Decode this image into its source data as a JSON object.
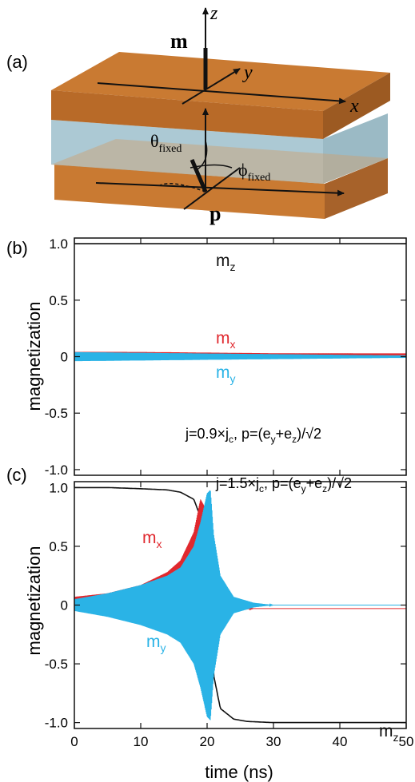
{
  "figure": {
    "panel_a": {
      "label": "(a)",
      "vec_m": "m",
      "vec_p": "p",
      "axis_x": "x",
      "axis_y": "y",
      "axis_z": "z",
      "theta": "θ",
      "theta_sub": "fixed",
      "phi": "ϕ",
      "phi_sub": "fixed",
      "colors": {
        "fm_layer": "#c97a32",
        "spacer": "#9dbfcc"
      }
    },
    "panel_b": {
      "label": "(b)"
    },
    "panel_c": {
      "label": "(c)"
    },
    "colors": {
      "mx": "#e0282e",
      "my": "#2ab3e6",
      "mz": "#111111"
    }
  },
  "chart_data": [
    {
      "type": "line",
      "panel": "(b)",
      "xlabel": "",
      "ylabel": "magnetization",
      "ylim": [
        -1.05,
        1.05
      ],
      "xlim": [
        0,
        50
      ],
      "yticks": [
        "1.0",
        "0.5",
        "0",
        "-0.5",
        "-1.0"
      ],
      "ytick_values": [
        1.0,
        0.5,
        0,
        -0.5,
        -1.0
      ],
      "annotation": {
        "main": "j=0.9×j",
        "sub1": "c",
        "mid": ", p=(e",
        "sub2": "y",
        "plus": "+e",
        "sub3": "z",
        "tail": ")/√2"
      },
      "series": [
        {
          "name": "m",
          "name_sub": "z",
          "color": "#111111",
          "x": [
            0,
            50
          ],
          "y": [
            1.0,
            1.0
          ]
        },
        {
          "name": "m",
          "name_sub": "x",
          "color": "#e0282e",
          "x": [
            0,
            10,
            20,
            30,
            40,
            50
          ],
          "y": [
            0.03,
            0.03,
            0.025,
            0.02,
            0.02,
            0.02
          ],
          "oscillation_amplitude": [
            0.012,
            0.008
          ]
        },
        {
          "name": "m",
          "name_sub": "y",
          "color": "#2ab3e6",
          "x": [
            0,
            10,
            20,
            30,
            40,
            50
          ],
          "y": [
            0.0,
            0.0,
            0.0,
            0.0,
            0.0,
            0.0
          ],
          "oscillation_amplitude": [
            0.04,
            0.01
          ]
        }
      ]
    },
    {
      "type": "line",
      "panel": "(c)",
      "xlabel": "time (ns)",
      "ylabel": "magnetization",
      "ylim": [
        -1.05,
        1.05
      ],
      "xlim": [
        0,
        50
      ],
      "xticks": [
        "0",
        "10",
        "20",
        "30",
        "40",
        "50"
      ],
      "xtick_values": [
        0,
        10,
        20,
        30,
        40,
        50
      ],
      "yticks": [
        "1.0",
        "0.5",
        "0",
        "-0.5",
        "-1.0"
      ],
      "ytick_values": [
        1.0,
        0.5,
        0,
        -0.5,
        -1.0
      ],
      "annotation": {
        "main": "j=1.5×j",
        "sub1": "c",
        "mid": ", p=(e",
        "sub2": "y",
        "plus": "+e",
        "sub3": "z",
        "tail": ")/√2"
      },
      "series": [
        {
          "name": "m",
          "name_sub": "z",
          "color": "#111111",
          "x": [
            0,
            5,
            10,
            14,
            16,
            18,
            19,
            20,
            21,
            22,
            24,
            26,
            30,
            40,
            50
          ],
          "y": [
            1.0,
            1.0,
            0.99,
            0.98,
            0.96,
            0.9,
            0.75,
            0.2,
            -0.6,
            -0.88,
            -0.97,
            -0.99,
            -1.0,
            -1.0,
            -1.0
          ]
        },
        {
          "name": "m",
          "name_sub": "x",
          "color": "#e0282e",
          "x": [
            0,
            5,
            10,
            14,
            16,
            18,
            19,
            20,
            21,
            22,
            24,
            27,
            30,
            40,
            50
          ],
          "y": [
            0.05,
            0.07,
            0.12,
            0.2,
            0.28,
            0.42,
            0.55,
            0.3,
            -0.1,
            -0.04,
            -0.03,
            -0.03,
            -0.03,
            -0.03,
            -0.03
          ],
          "envelope": [
            0.02,
            0.03,
            0.05,
            0.08,
            0.1,
            0.2,
            0.35,
            0.5,
            0.3,
            0.1,
            0.02,
            0.0,
            0.0,
            0.0,
            0.0
          ]
        },
        {
          "name": "m",
          "name_sub": "y",
          "color": "#2ab3e6",
          "x": [
            0,
            5,
            10,
            14,
            16,
            18,
            19,
            20,
            20.5,
            21,
            22,
            24,
            27,
            30,
            40,
            50
          ],
          "y": [
            0,
            0,
            0,
            0,
            0,
            0,
            0,
            0,
            0,
            0,
            0,
            0,
            0,
            0,
            0,
            0
          ],
          "envelope": [
            0.05,
            0.1,
            0.17,
            0.25,
            0.32,
            0.5,
            0.7,
            0.95,
            0.98,
            0.6,
            0.25,
            0.07,
            0.02,
            0.0,
            0.0,
            0.0
          ]
        }
      ]
    }
  ]
}
